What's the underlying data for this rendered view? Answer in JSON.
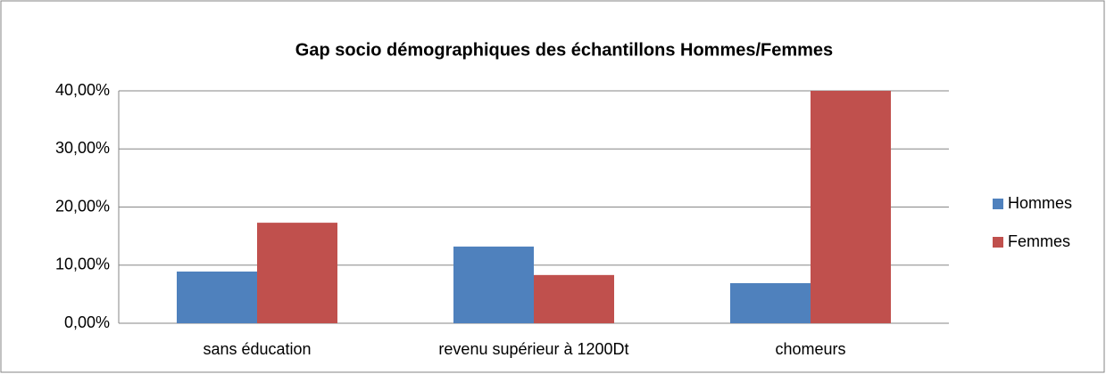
{
  "chart_data": {
    "type": "bar",
    "title": "Gap socio démographiques des échantillons Hommes/Femmes",
    "categories": [
      "sans éducation",
      "revenu supérieur à 1200Dt",
      "chomeurs"
    ],
    "series": [
      {
        "name": "Hommes",
        "color": "#4f81bd",
        "values": [
          8.9,
          13.2,
          6.9
        ]
      },
      {
        "name": "Femmes",
        "color": "#c0504d",
        "values": [
          17.3,
          8.3,
          40
        ]
      }
    ],
    "ylim": [
      0,
      40
    ],
    "yticks": [
      {
        "value": 0,
        "label": "0,00%"
      },
      {
        "value": 10,
        "label": "10,00%"
      },
      {
        "value": 20,
        "label": "20,00%"
      },
      {
        "value": 30,
        "label": "30,00%"
      },
      {
        "value": 40,
        "label": "40,00%"
      }
    ],
    "grid": true,
    "legend": "right"
  }
}
